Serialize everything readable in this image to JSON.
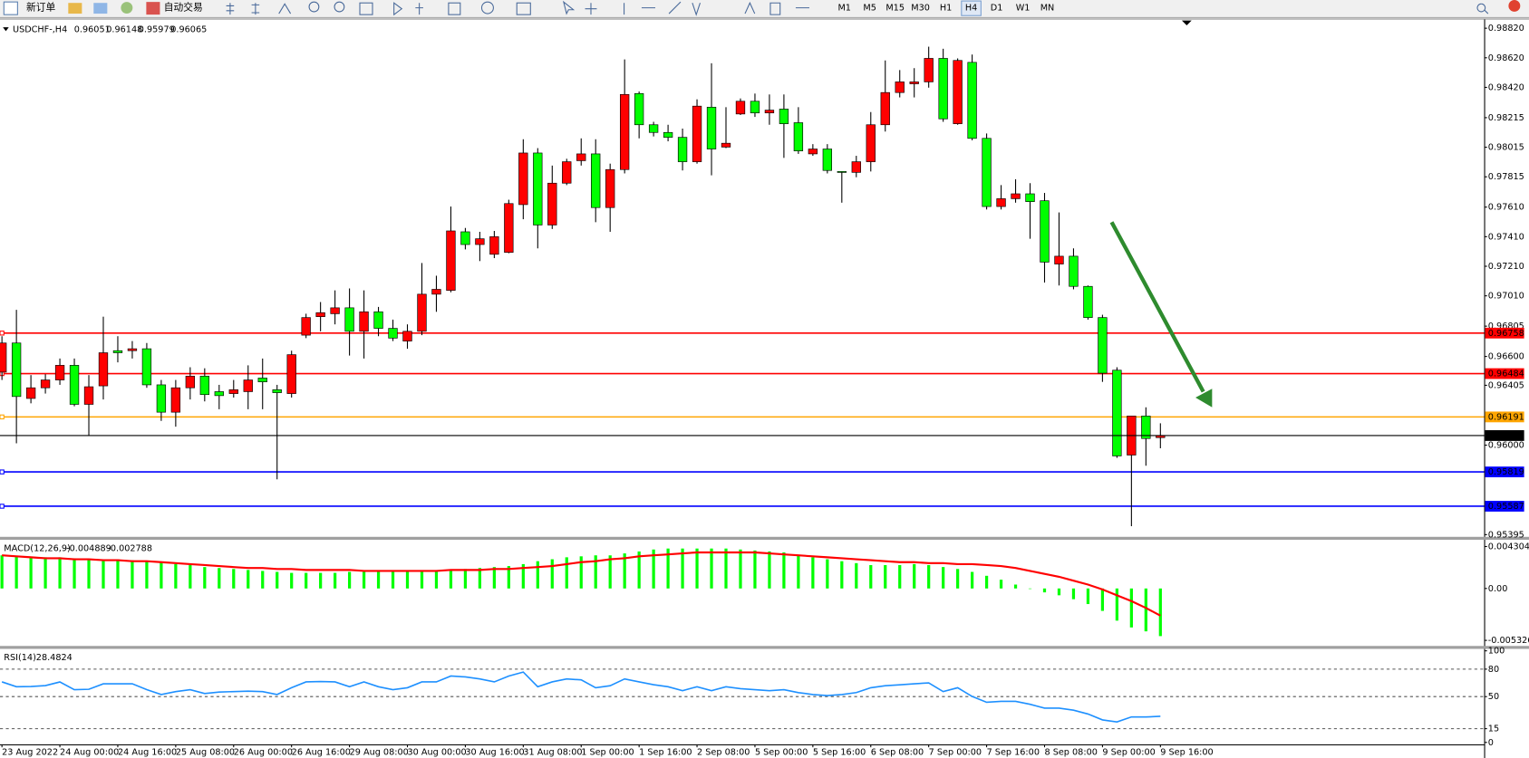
{
  "toolbar": {
    "new_order": "新订单",
    "auto_trading": "自动交易",
    "timeframes": [
      "M1",
      "M5",
      "M15",
      "M30",
      "H1",
      "H4",
      "D1",
      "W1",
      "MN"
    ],
    "active_timeframe": "H4"
  },
  "chart_data": [
    {
      "type": "candlestick",
      "title": "USDCHF-,H4",
      "categories": [
        "23 Aug 2022",
        null,
        null,
        null,
        "24 Aug 00:00",
        null,
        null,
        null,
        "24 Aug 16:00",
        null,
        null,
        null,
        "25 Aug 08:00",
        null,
        null,
        null,
        "26 Aug 00:00",
        null,
        null,
        null,
        "26 Aug 16:00",
        null,
        null,
        null,
        "29 Aug 08:00",
        null,
        null,
        null,
        "30 Aug 00:00",
        null,
        null,
        null,
        "30 Aug 16:00",
        null,
        null,
        null,
        "31 Aug 08:00",
        null,
        null,
        null,
        "1 Sep 00:00",
        null,
        null,
        null,
        "1 Sep 16:00",
        null,
        null,
        null,
        "2 Sep 08:00",
        null,
        null,
        null,
        "5 Sep 00:00",
        null,
        null,
        null,
        "5 Sep 16:00",
        null,
        null,
        null,
        "6 Sep 08:00",
        null,
        null,
        null,
        "7 Sep 00:00",
        null,
        null,
        null,
        "7 Sep 16:00",
        null,
        null,
        null,
        "8 Sep 08:00",
        null,
        null,
        null,
        "9 Sep 00:00",
        null,
        null,
        null,
        "9 Sep 16:00"
      ],
      "open": [
        0.96494,
        0.96691,
        0.96316,
        0.96388,
        0.96441,
        0.9654,
        0.96276,
        0.96401,
        0.96639,
        0.96639,
        0.96652,
        0.96408,
        0.96223,
        0.96388,
        0.96467,
        0.96362,
        0.96349,
        0.96362,
        0.96454,
        0.96375,
        0.96349,
        0.96744,
        0.96869,
        0.96889,
        0.96929,
        0.9677,
        0.96902,
        0.9679,
        0.96704,
        0.9677,
        0.97021,
        0.97047,
        0.97443,
        0.97357,
        0.97291,
        0.97304,
        0.97627,
        0.97976,
        0.97489,
        0.97772,
        0.97924,
        0.9797,
        0.97607,
        0.97864,
        0.98378,
        0.98167,
        0.98115,
        0.98082,
        0.97917,
        0.98286,
        0.98016,
        0.9824,
        0.98326,
        0.98247,
        0.98273,
        0.98181,
        0.9797,
        0.98003,
        0.97851,
        0.97845,
        0.97917,
        0.98167,
        0.98385,
        0.98444,
        0.98457,
        0.98616,
        0.98174,
        0.98589,
        0.98075,
        0.97614,
        0.97667,
        0.977,
        0.97653,
        0.97225,
        0.97278,
        0.97074,
        0.96863,
        0.96507,
        0.95933,
        0.96197,
        0.96051
      ],
      "high": [
        0.96737,
        0.96915,
        0.96474,
        0.9648,
        0.96586,
        0.96586,
        0.96474,
        0.96869,
        0.96737,
        0.96704,
        0.96691,
        0.96441,
        0.96441,
        0.96527,
        0.9652,
        0.96408,
        0.96441,
        0.9654,
        0.96586,
        0.96408,
        0.96639,
        0.96889,
        0.96968,
        0.97047,
        0.9706,
        0.97047,
        0.96935,
        0.96849,
        0.96817,
        0.97232,
        0.97146,
        0.97614,
        0.97469,
        0.97443,
        0.97449,
        0.9766,
        0.98069,
        0.98009,
        0.97891,
        0.97937,
        0.98075,
        0.98069,
        0.97904,
        0.98609,
        0.98392,
        0.98187,
        0.98167,
        0.98141,
        0.98339,
        0.98583,
        0.98286,
        0.98345,
        0.98378,
        0.98372,
        0.98372,
        0.98286,
        0.98036,
        0.98036,
        0.97851,
        0.97957,
        0.98253,
        0.98602,
        0.98537,
        0.9855,
        0.98695,
        0.98681,
        0.98616,
        0.98642,
        0.98108,
        0.97759,
        0.97798,
        0.97772,
        0.97706,
        0.97574,
        0.97331,
        0.9708,
        0.96882,
        0.96527,
        0.96197,
        0.96256,
        0.96148
      ],
      "low": [
        0.96441,
        0.96013,
        0.96283,
        0.96349,
        0.96408,
        0.96263,
        0.96065,
        0.96309,
        0.9656,
        0.96586,
        0.96388,
        0.96164,
        0.96125,
        0.96309,
        0.96296,
        0.96243,
        0.96322,
        0.96243,
        0.96243,
        0.95769,
        0.96322,
        0.96724,
        0.9677,
        0.96817,
        0.96606,
        0.96586,
        0.96737,
        0.96704,
        0.96652,
        0.96744,
        0.96902,
        0.97034,
        0.97324,
        0.97245,
        0.97265,
        0.97298,
        0.97528,
        0.97331,
        0.97462,
        0.97759,
        0.97891,
        0.97508,
        0.97443,
        0.97838,
        0.98075,
        0.98088,
        0.98055,
        0.97858,
        0.97904,
        0.97825,
        0.98009,
        0.98233,
        0.9822,
        0.98167,
        0.97943,
        0.9797,
        0.97957,
        0.97838,
        0.9764,
        0.97812,
        0.97851,
        0.98121,
        0.98352,
        0.98352,
        0.98418,
        0.98187,
        0.98167,
        0.98062,
        0.97594,
        0.97594,
        0.9764,
        0.97396,
        0.971,
        0.9708,
        0.97054,
        0.96849,
        0.96428,
        0.95914,
        0.95452,
        0.95861,
        0.95979
      ],
      "close": [
        0.96691,
        0.96329,
        0.96388,
        0.96441,
        0.9654,
        0.96276,
        0.96395,
        0.96625,
        0.96625,
        0.96652,
        0.96408,
        0.96223,
        0.96388,
        0.96467,
        0.96342,
        0.96335,
        0.96375,
        0.96441,
        0.96428,
        0.96355,
        0.96612,
        0.96863,
        0.96896,
        0.96929,
        0.9677,
        0.96902,
        0.9679,
        0.96724,
        0.9677,
        0.97021,
        0.97054,
        0.97449,
        0.97357,
        0.97396,
        0.9741,
        0.97634,
        0.97976,
        0.97489,
        0.97772,
        0.97917,
        0.9797,
        0.97607,
        0.97864,
        0.98372,
        0.98167,
        0.98115,
        0.98082,
        0.97917,
        0.98293,
        0.98003,
        0.98042,
        0.98326,
        0.98247,
        0.98266,
        0.98174,
        0.9799,
        0.98003,
        0.97858,
        0.97845,
        0.97917,
        0.98167,
        0.98385,
        0.98457,
        0.98457,
        0.98616,
        0.98207,
        0.98602,
        0.98075,
        0.97614,
        0.97667,
        0.977,
        0.97647,
        0.97238,
        0.97278,
        0.97074,
        0.96863,
        0.96487,
        0.95927,
        0.96197,
        0.96045,
        0.96065
      ],
      "up_color": "#ff0000",
      "down_color": "#00ff00",
      "ylim": [
        0.9538,
        0.98879
      ],
      "yticks": [
        {
          "value": 0.9882,
          "label": "0.98820"
        },
        {
          "value": 0.9862,
          "label": "0.98620"
        },
        {
          "value": 0.9842,
          "label": "0.98420"
        },
        {
          "value": 0.98215,
          "label": "0.98215"
        },
        {
          "value": 0.98015,
          "label": "0.98015"
        },
        {
          "value": 0.97815,
          "label": "0.97815"
        },
        {
          "value": 0.9761,
          "label": "0.97610"
        },
        {
          "value": 0.9741,
          "label": "0.97410"
        },
        {
          "value": 0.9721,
          "label": "0.97210"
        },
        {
          "value": 0.9701,
          "label": "0.97010"
        },
        {
          "value": 0.96805,
          "label": "0.96805"
        },
        {
          "value": 0.966,
          "label": "0.96600"
        },
        {
          "value": 0.96405,
          "label": "0.96405"
        },
        {
          "value": 0.96,
          "label": "0.96000"
        },
        {
          "value": 0.95395,
          "label": "0.95395"
        }
      ],
      "levels": [
        {
          "value": 0.96758,
          "color": "#ff0000"
        },
        {
          "value": 0.96484,
          "color": "#ff0000"
        },
        {
          "value": 0.96191,
          "color": "#ffa500"
        },
        {
          "value": 0.95819,
          "color": "#0000ff"
        },
        {
          "value": 0.95587,
          "color": "#0000ff"
        }
      ],
      "price_line_color": "#000000"
    },
    {
      "type": "macd",
      "title": "MACD(12,26,9)",
      "histogram": [
        0.0034,
        0.0033,
        0.0032,
        0.0032,
        0.0032,
        0.0031,
        0.003,
        0.003,
        0.003,
        0.0029,
        0.0028,
        0.0027,
        0.0025,
        0.0024,
        0.0022,
        0.0021,
        0.002,
        0.0019,
        0.0018,
        0.0017,
        0.0016,
        0.0016,
        0.0016,
        0.0016,
        0.0017,
        0.0017,
        0.0017,
        0.0017,
        0.0017,
        0.0017,
        0.0018,
        0.0019,
        0.002,
        0.0021,
        0.0022,
        0.0023,
        0.0025,
        0.0028,
        0.003,
        0.0032,
        0.0033,
        0.0034,
        0.0034,
        0.0036,
        0.0038,
        0.004,
        0.0041,
        0.0041,
        0.0041,
        0.0041,
        0.0041,
        0.004,
        0.0039,
        0.0038,
        0.0037,
        0.0034,
        0.0032,
        0.003,
        0.0028,
        0.0026,
        0.0024,
        0.0024,
        0.0024,
        0.0025,
        0.0024,
        0.0022,
        0.002,
        0.0017,
        0.0013,
        0.0009,
        0.0004,
        0,
        -0.0004,
        -0.0007,
        -0.0011,
        -0.0016,
        -0.0023,
        -0.0033,
        -0.004,
        -0.0044,
        -0.004889
      ],
      "signal": [
        0.0034,
        0.0033,
        0.0032,
        0.0031,
        0.0031,
        0.003,
        0.003,
        0.0029,
        0.0029,
        0.0028,
        0.0028,
        0.0027,
        0.0026,
        0.0025,
        0.0024,
        0.0023,
        0.0022,
        0.0021,
        0.0021,
        0.002,
        0.002,
        0.0019,
        0.0019,
        0.0019,
        0.0019,
        0.0018,
        0.0018,
        0.0018,
        0.0018,
        0.0018,
        0.0018,
        0.0019,
        0.0019,
        0.0019,
        0.002,
        0.002,
        0.0021,
        0.0022,
        0.0023,
        0.0025,
        0.0027,
        0.0028,
        0.003,
        0.0031,
        0.0033,
        0.0034,
        0.0035,
        0.0036,
        0.0037,
        0.0037,
        0.0037,
        0.0037,
        0.0037,
        0.0036,
        0.0035,
        0.0034,
        0.0033,
        0.0032,
        0.0031,
        0.003,
        0.0029,
        0.0028,
        0.0027,
        0.0027,
        0.0026,
        0.0026,
        0.0025,
        0.0025,
        0.0024,
        0.0023,
        0.0021,
        0.0018,
        0.0015,
        0.0012,
        0.0008,
        0.0004,
        -0.0001,
        -0.0007,
        -0.0013,
        -0.002,
        -0.002788
      ],
      "histogram_color": "#00ff00",
      "signal_color": "#ff0000",
      "ylim": [
        -0.0059,
        0.0049
      ],
      "yticks": [
        0.004304,
        {
          "value": 0,
          "label": "0.00"
        },
        -0.005326
      ]
    },
    {
      "type": "line",
      "title": "RSI(14)",
      "values": [
        66.1,
        60.8,
        61,
        62,
        66,
        57.6,
        58,
        64,
        64,
        64,
        57.6,
        52.3,
        55.5,
        57.6,
        53.4,
        55,
        55.5,
        56,
        55.5,
        52.3,
        59.7,
        66.1,
        66.5,
        66.1,
        60.8,
        66.1,
        60.8,
        57.6,
        59.7,
        66.1,
        66.1,
        72.5,
        71.5,
        69.3,
        66.1,
        72.5,
        76.8,
        60.8,
        66.1,
        69.3,
        68.3,
        59.7,
        61.9,
        69.3,
        66.1,
        63,
        60.8,
        56.5,
        60.8,
        56.5,
        60.8,
        58.7,
        57.6,
        56.5,
        57.6,
        54.4,
        52.3,
        51.2,
        52.3,
        54.4,
        59.7,
        61.9,
        62.9,
        64,
        65,
        55.5,
        59.7,
        50.2,
        43.8,
        44.8,
        44.8,
        41.6,
        37.4,
        37.4,
        35.2,
        31,
        24.6,
        22.4,
        27.8,
        27.8,
        28.4824
      ],
      "color": "#1e90ff",
      "ylim": [
        0,
        100
      ],
      "yticks": [
        100,
        80,
        50,
        15,
        0
      ],
      "levels": [
        80,
        50,
        15
      ]
    }
  ]
}
